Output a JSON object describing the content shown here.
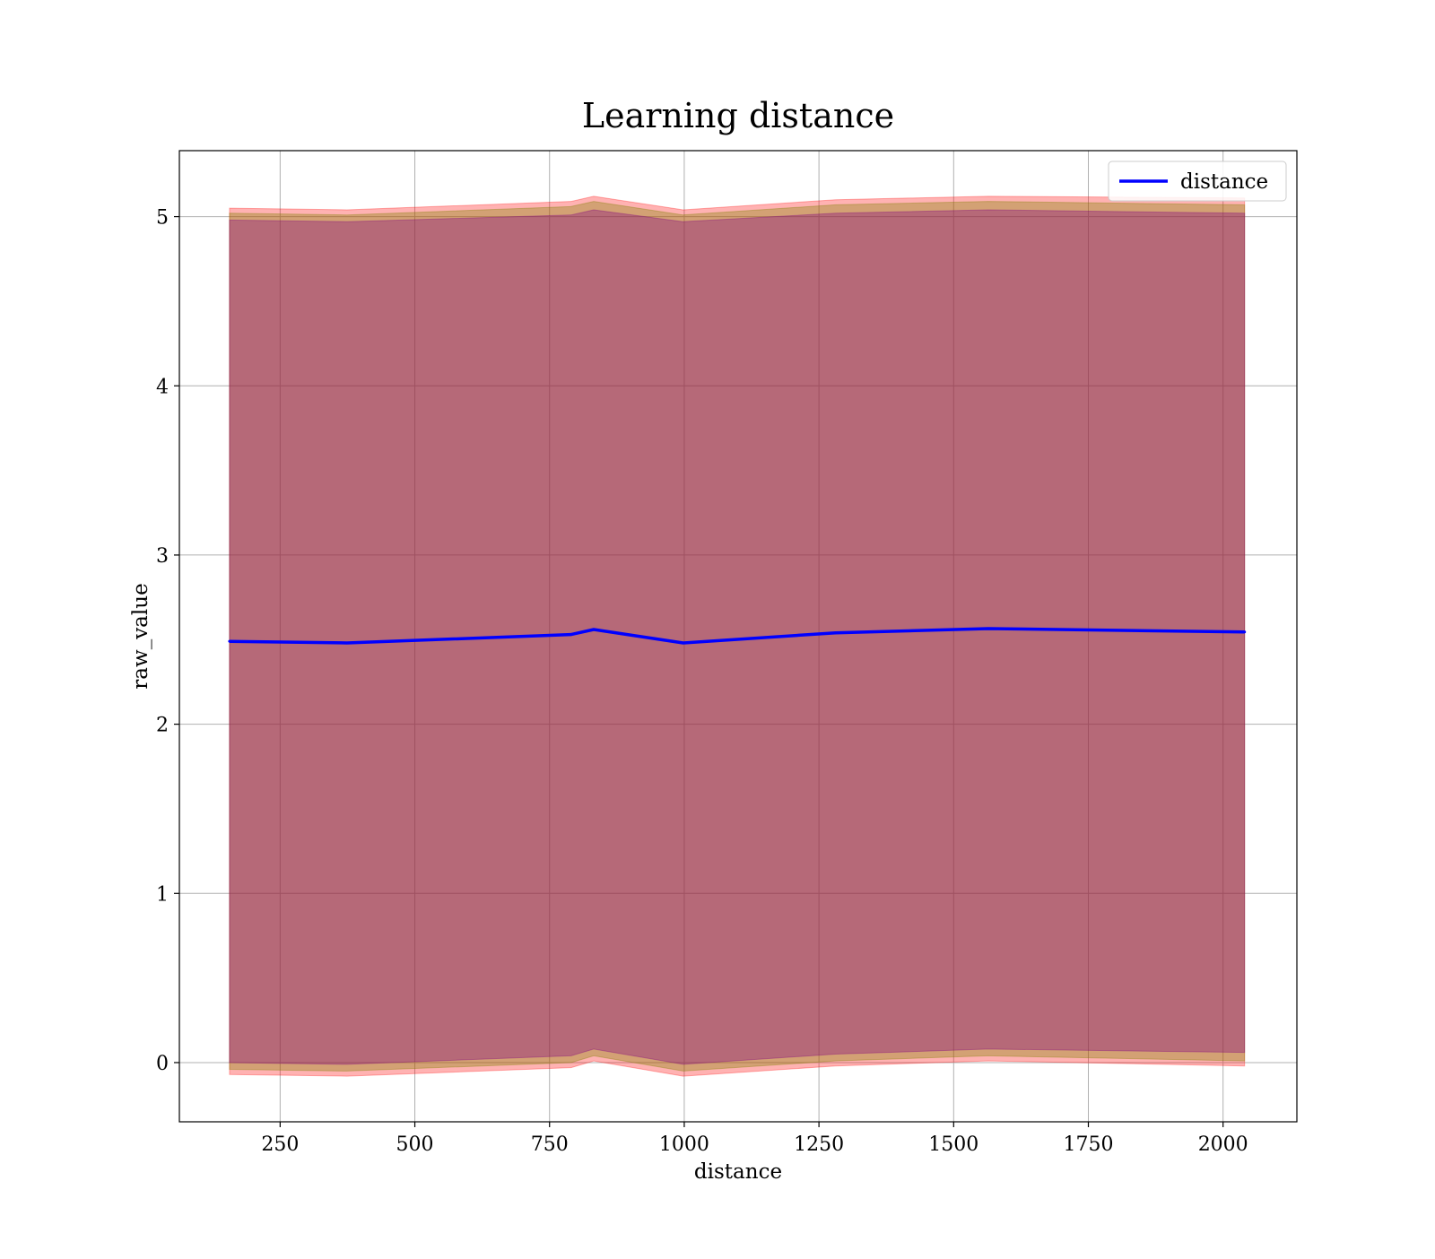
{
  "chart_data": {
    "type": "line",
    "title": "Learning distance",
    "xlabel": "distance",
    "ylabel": "raw_value",
    "xlim": [
      63,
      2137
    ],
    "ylim": [
      -0.35,
      5.39
    ],
    "x_ticks": [
      250,
      500,
      750,
      1000,
      1250,
      1500,
      1750,
      2000
    ],
    "y_ticks": [
      0,
      1,
      2,
      3,
      4,
      5
    ],
    "grid": true,
    "legend": {
      "placement": "top-right",
      "entries": [
        "distance"
      ]
    },
    "x": [
      156,
      374,
      790,
      832,
      998,
      1281,
      1564,
      2040
    ],
    "series": [
      {
        "name": "distance",
        "color": "#0000ff",
        "values": [
          2.49,
          2.48,
          2.53,
          2.56,
          2.48,
          2.54,
          2.565,
          2.545
        ]
      }
    ],
    "bands": [
      {
        "color": "#ff0000",
        "opacity": 0.3,
        "lower": [
          -0.07,
          -0.08,
          -0.03,
          0.01,
          -0.08,
          -0.02,
          0.01,
          -0.02
        ],
        "upper": [
          5.05,
          5.04,
          5.09,
          5.12,
          5.04,
          5.1,
          5.12,
          5.11
        ]
      },
      {
        "color": "#808000",
        "opacity": 0.35,
        "lower": [
          -0.04,
          -0.05,
          0.0,
          0.04,
          -0.05,
          0.01,
          0.04,
          0.01
        ],
        "upper": [
          5.02,
          5.01,
          5.06,
          5.09,
          5.01,
          5.07,
          5.09,
          5.07
        ]
      },
      {
        "color": "#800080",
        "opacity": 0.35,
        "lower": [
          0.0,
          -0.01,
          0.04,
          0.08,
          -0.01,
          0.05,
          0.08,
          0.06
        ],
        "upper": [
          4.98,
          4.97,
          5.01,
          5.04,
          4.97,
          5.02,
          5.04,
          5.02
        ]
      }
    ]
  }
}
